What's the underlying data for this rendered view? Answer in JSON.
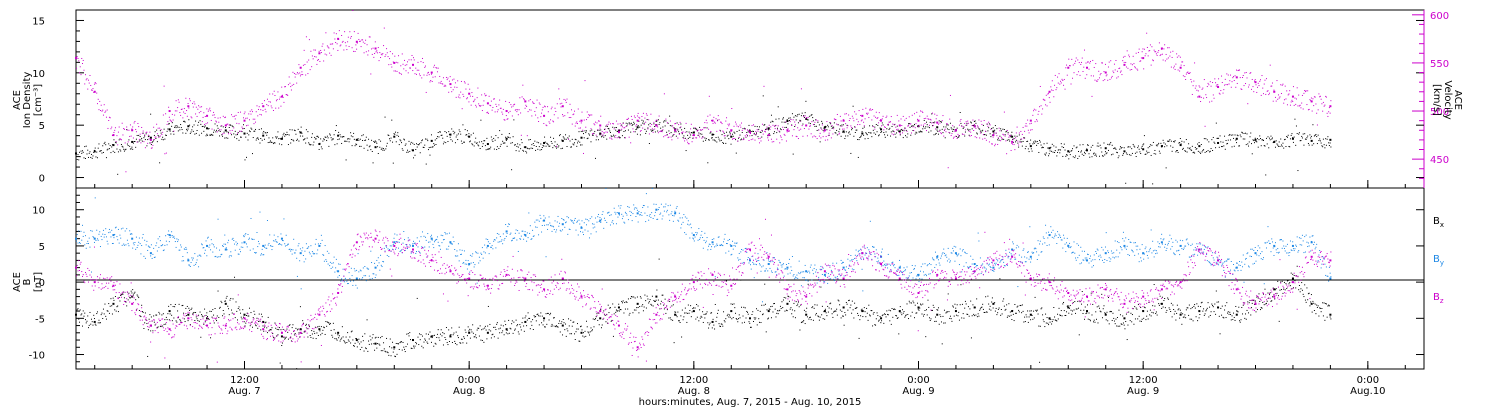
{
  "chart_data": [
    {
      "type": "scatter",
      "panel": "top",
      "ylabel_left": [
        "ACE",
        "Ion Density",
        "[cm⁻³]"
      ],
      "ylabel_right": [
        "ACE",
        "Velocity",
        "[km/s]"
      ],
      "ylim_left": [
        -1,
        16
      ],
      "ylim_right": [
        420,
        605
      ],
      "yticks_left": [
        0,
        5,
        10,
        15
      ],
      "yticks_right": [
        450,
        500,
        550,
        600
      ],
      "xlim_hours": [
        0,
        72
      ],
      "series": [
        {
          "axis": "left",
          "color": "#000000",
          "x": [
            0,
            1,
            2,
            3,
            4,
            5,
            6,
            7,
            8,
            9,
            10,
            11,
            12,
            13,
            14,
            15,
            16,
            17,
            18,
            19,
            20,
            21,
            22,
            23,
            24,
            25,
            26,
            27,
            28,
            29,
            30,
            31,
            32,
            33,
            34,
            35,
            36,
            37,
            38,
            39,
            40,
            41,
            42,
            43,
            44,
            45,
            46,
            47,
            48,
            49,
            50,
            51,
            52,
            53,
            54,
            55,
            56,
            57,
            58,
            59,
            60,
            61,
            62,
            63,
            64,
            65,
            66,
            67
          ],
          "values": [
            2.3,
            2.5,
            3.1,
            3.4,
            3.8,
            4.6,
            4.9,
            4.7,
            4.5,
            4.2,
            4.0,
            3.7,
            4.3,
            3.2,
            4.0,
            3.6,
            2.9,
            3.9,
            2.6,
            3.5,
            4.1,
            3.9,
            3.2,
            3.7,
            2.9,
            3.3,
            3.5,
            3.8,
            4.2,
            4.5,
            4.8,
            5.0,
            4.6,
            4.3,
            4.1,
            3.9,
            4.4,
            4.7,
            5.4,
            5.6,
            4.8,
            4.4,
            4.2,
            4.6,
            4.4,
            4.9,
            4.8,
            4.5,
            4.9,
            4.4,
            3.9,
            3.0,
            2.8,
            2.5,
            2.6,
            2.8,
            2.5,
            2.7,
            3.0,
            3.1,
            3.0,
            3.3,
            3.7,
            3.6,
            3.4,
            3.7,
            3.5,
            3.6
          ]
        },
        {
          "axis": "right",
          "color": "#cc00cc",
          "x": [
            0,
            1,
            2,
            3,
            4,
            5,
            6,
            7,
            8,
            9,
            10,
            11,
            12,
            13,
            14,
            15,
            16,
            17,
            18,
            19,
            20,
            21,
            22,
            23,
            24,
            25,
            26,
            27,
            28,
            29,
            30,
            31,
            32,
            33,
            34,
            35,
            36,
            37,
            38,
            39,
            40,
            41,
            42,
            43,
            44,
            45,
            46,
            47,
            48,
            49,
            50,
            51,
            52,
            53,
            54,
            55,
            56,
            57,
            58,
            59,
            60,
            61,
            62,
            63,
            64,
            65,
            66,
            67
          ],
          "values": [
            555,
            520,
            475,
            480,
            470,
            500,
            505,
            495,
            485,
            490,
            505,
            515,
            545,
            560,
            575,
            572,
            565,
            550,
            548,
            540,
            528,
            518,
            508,
            500,
            510,
            495,
            505,
            490,
            485,
            478,
            490,
            485,
            480,
            475,
            490,
            480,
            478,
            475,
            480,
            485,
            480,
            490,
            495,
            490,
            485,
            490,
            488,
            480,
            484,
            475,
            468,
            490,
            520,
            545,
            545,
            540,
            548,
            555,
            565,
            545,
            515,
            525,
            535,
            530,
            520,
            515,
            510,
            505
          ]
        }
      ]
    },
    {
      "type": "scatter",
      "panel": "bottom",
      "ylabel": [
        "ACE",
        "B",
        "[nT]"
      ],
      "ylim": [
        -12,
        13
      ],
      "yticks": [
        -10,
        -5,
        0,
        5,
        10
      ],
      "xlim_hours": [
        0,
        72
      ],
      "series": [
        {
          "name": "Bx",
          "color": "#000000",
          "x": [
            0,
            1,
            2,
            3,
            4,
            5,
            6,
            7,
            8,
            9,
            10,
            11,
            12,
            13,
            14,
            15,
            16,
            17,
            18,
            19,
            20,
            21,
            22,
            23,
            24,
            25,
            26,
            27,
            28,
            29,
            30,
            31,
            32,
            33,
            34,
            35,
            36,
            37,
            38,
            39,
            40,
            41,
            42,
            43,
            44,
            45,
            46,
            47,
            48,
            49,
            50,
            51,
            52,
            53,
            54,
            55,
            56,
            57,
            58,
            59,
            60,
            61,
            62,
            63,
            64,
            65,
            66,
            67
          ],
          "values": [
            -4.5,
            -5.5,
            -3.0,
            -2.0,
            -6.0,
            -4.0,
            -4.5,
            -5.0,
            -3.0,
            -4.5,
            -5.5,
            -7.5,
            -6.5,
            -6.5,
            -7.0,
            -8.0,
            -8.5,
            -9.0,
            -8.0,
            -7.5,
            -7.5,
            -7.0,
            -7.0,
            -6.5,
            -5.5,
            -5.0,
            -6.0,
            -7.0,
            -5.0,
            -3.5,
            -3.0,
            -2.0,
            -4.5,
            -4.0,
            -5.5,
            -4.0,
            -5.0,
            -4.0,
            -3.0,
            -4.5,
            -4.0,
            -3.5,
            -4.0,
            -5.0,
            -4.0,
            -3.5,
            -4.5,
            -4.0,
            -3.5,
            -3.0,
            -4.0,
            -4.5,
            -5.0,
            -3.5,
            -4.0,
            -4.5,
            -5.0,
            -4.0,
            -3.0,
            -4.5,
            -4.0,
            -3.5,
            -4.5,
            -3.0,
            -1.0,
            0.5,
            -3.0,
            -4.5
          ]
        },
        {
          "name": "By",
          "color": "#1e88e5",
          "x": [
            0,
            1,
            2,
            3,
            4,
            5,
            6,
            7,
            8,
            9,
            10,
            11,
            12,
            13,
            14,
            15,
            16,
            17,
            18,
            19,
            20,
            21,
            22,
            23,
            24,
            25,
            26,
            27,
            28,
            29,
            30,
            31,
            32,
            33,
            34,
            35,
            36,
            37,
            38,
            39,
            40,
            41,
            42,
            43,
            44,
            45,
            46,
            47,
            48,
            49,
            50,
            51,
            52,
            53,
            54,
            55,
            56,
            57,
            58,
            59,
            60,
            61,
            62,
            63,
            64,
            65,
            66,
            67
          ],
          "values": [
            6.0,
            6.0,
            6.5,
            6.0,
            4.0,
            6.5,
            3.0,
            5.0,
            4.5,
            5.5,
            5.0,
            6.0,
            4.0,
            5.0,
            1.5,
            0.5,
            2.0,
            5.5,
            5.0,
            6.0,
            5.5,
            2.5,
            5.0,
            7.0,
            6.5,
            8.5,
            8.0,
            7.5,
            8.5,
            9.5,
            9.5,
            10.0,
            9.5,
            6.5,
            5.5,
            5.0,
            3.0,
            2.5,
            2.0,
            1.5,
            1.0,
            2.0,
            4.0,
            3.5,
            2.0,
            1.0,
            3.5,
            4.0,
            2.5,
            2.0,
            4.5,
            3.5,
            6.5,
            5.0,
            3.0,
            4.0,
            5.0,
            4.0,
            5.5,
            5.0,
            4.5,
            3.0,
            2.0,
            4.0,
            5.0,
            5.0,
            5.5,
            0.5
          ]
        },
        {
          "name": "Bz",
          "color": "#cc00cc",
          "x": [
            0,
            1,
            2,
            3,
            4,
            5,
            6,
            7,
            8,
            9,
            10,
            11,
            12,
            13,
            14,
            15,
            16,
            17,
            18,
            19,
            20,
            21,
            22,
            23,
            24,
            25,
            26,
            27,
            28,
            29,
            30,
            31,
            32,
            33,
            34,
            35,
            36,
            37,
            38,
            39,
            40,
            41,
            42,
            43,
            44,
            45,
            46,
            47,
            48,
            49,
            50,
            51,
            52,
            53,
            54,
            55,
            56,
            57,
            58,
            59,
            60,
            61,
            62,
            63,
            64,
            65,
            66,
            67
          ],
          "values": [
            2.0,
            0.0,
            -0.5,
            -3.0,
            -6.0,
            -6.5,
            -5.0,
            -6.0,
            -6.0,
            -5.0,
            -6.5,
            -7.0,
            -7.0,
            -4.5,
            -1.5,
            5.5,
            6.0,
            5.0,
            4.5,
            3.0,
            1.5,
            0.5,
            -0.5,
            1.0,
            0.5,
            -1.0,
            0.5,
            -2.0,
            -4.0,
            -6.0,
            -9.0,
            -4.5,
            -2.0,
            0.0,
            1.0,
            -0.5,
            4.5,
            3.5,
            -1.0,
            -2.0,
            1.5,
            0.5,
            4.0,
            2.5,
            0.5,
            -1.5,
            1.0,
            0.5,
            1.5,
            3.0,
            3.5,
            0.5,
            0.0,
            -1.5,
            -2.0,
            -1.0,
            -3.0,
            -2.0,
            -1.0,
            0.0,
            4.5,
            3.0,
            -1.0,
            -3.0,
            -2.0,
            0.0,
            3.5,
            3.0
          ]
        }
      ]
    }
  ],
  "legend": {
    "bx": {
      "base": "B",
      "sub": "x",
      "color": "#000000"
    },
    "by": {
      "base": "B",
      "sub": "y",
      "color": "#1e88e5"
    },
    "bz": {
      "base": "B",
      "sub": "z",
      "color": "#cc00cc"
    }
  },
  "x_axis": {
    "ticks": [
      {
        "hour": 9,
        "time": "12:00",
        "date": "Aug. 7"
      },
      {
        "hour": 21,
        "time": "0:00",
        "date": "Aug. 8"
      },
      {
        "hour": 33,
        "time": "12:00",
        "date": "Aug. 8"
      },
      {
        "hour": 45,
        "time": "0:00",
        "date": "Aug. 9"
      },
      {
        "hour": 57,
        "time": "12:00",
        "date": "Aug. 9"
      },
      {
        "hour": 69,
        "time": "0:00",
        "date": "Aug.10"
      }
    ],
    "minor_every_hours": 2,
    "label": "hours:minutes, Aug.  7, 2015 - Aug. 10, 2015"
  }
}
